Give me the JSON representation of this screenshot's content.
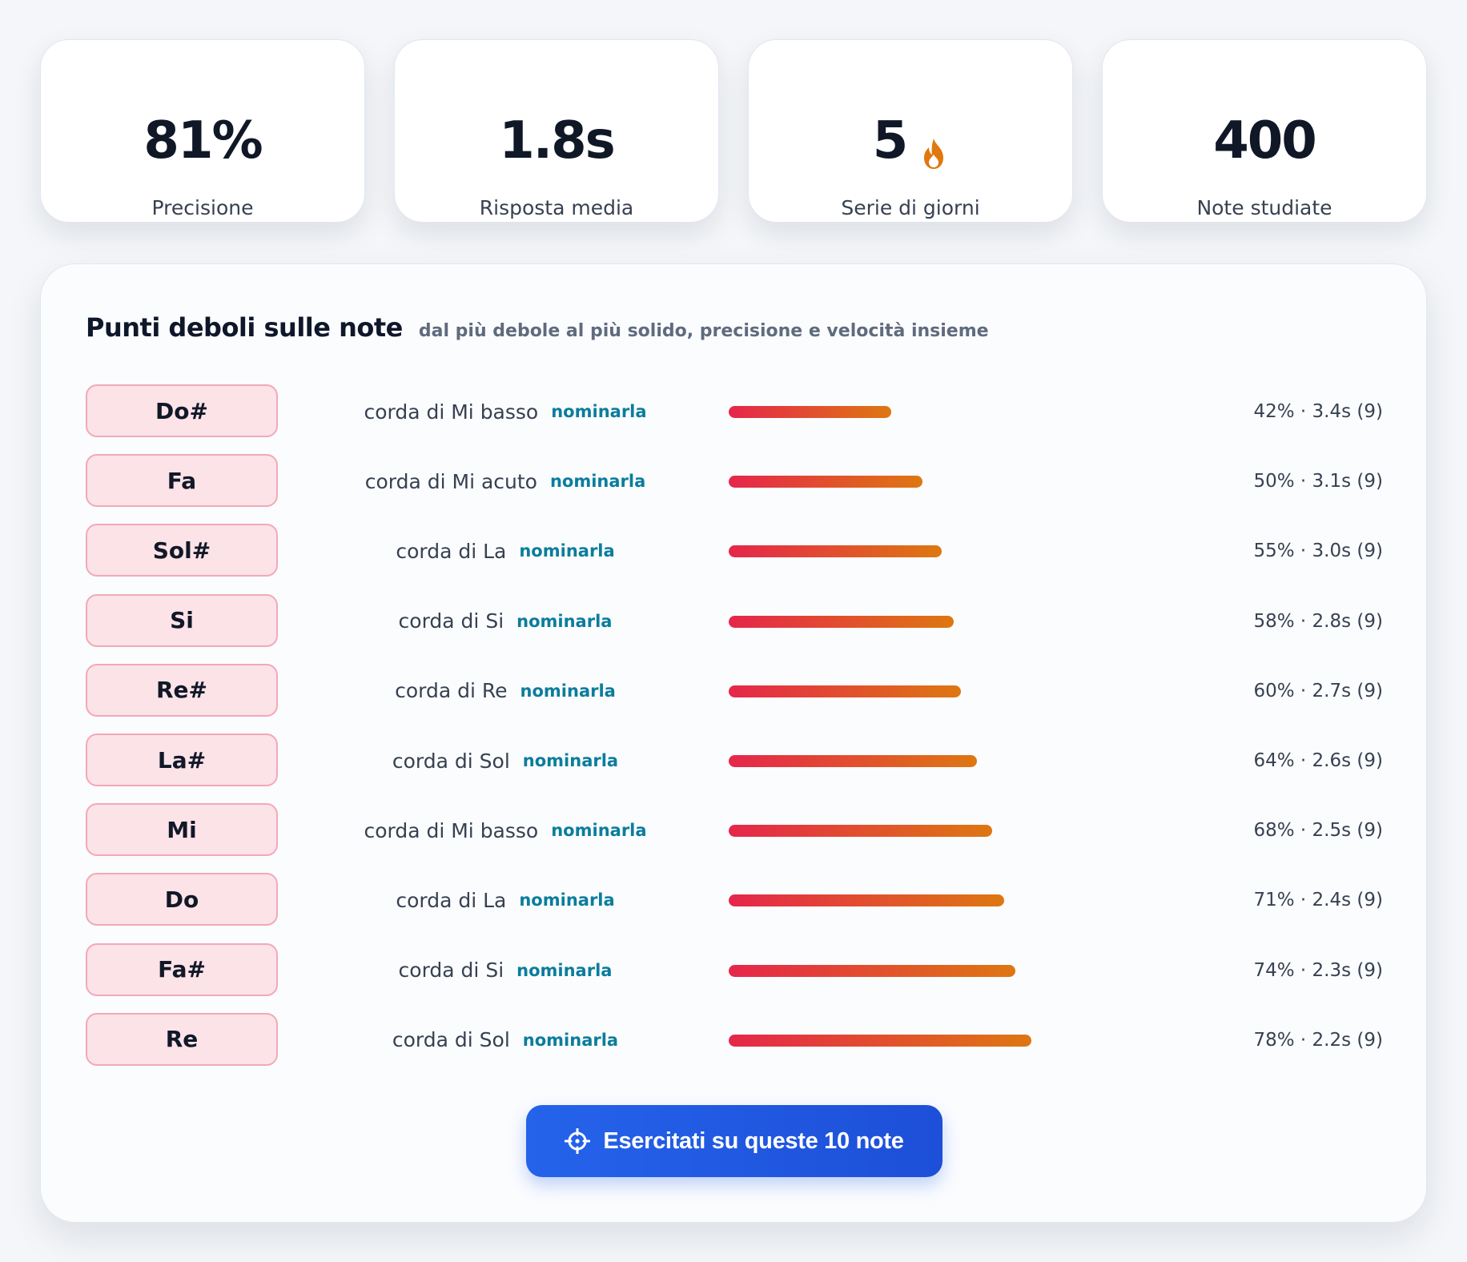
{
  "stats": [
    {
      "value": "81%",
      "label": "Precisione"
    },
    {
      "value": "1.8s",
      "label": "Risposta media"
    },
    {
      "value": "5",
      "label": "Serie di giorni",
      "icon": "flame-icon"
    },
    {
      "value": "400",
      "label": "Note studiate"
    }
  ],
  "weak_notes": {
    "title": "Punti deboli sulle note",
    "subtitle": "dal più debole al più solido, precisione e velocità insieme",
    "link_label": "nominarla",
    "rows": [
      {
        "note": "Do#",
        "string": "corda di Mi basso",
        "accuracy": 42,
        "metric": "42% · 3.4s (9)"
      },
      {
        "note": "Fa",
        "string": "corda di Mi acuto",
        "accuracy": 50,
        "metric": "50% · 3.1s (9)"
      },
      {
        "note": "Sol#",
        "string": "corda di La",
        "accuracy": 55,
        "metric": "55% · 3.0s (9)"
      },
      {
        "note": "Si",
        "string": "corda di Si",
        "accuracy": 58,
        "metric": "58% · 2.8s (9)"
      },
      {
        "note": "Re#",
        "string": "corda di Re",
        "accuracy": 60,
        "metric": "60% · 2.7s (9)"
      },
      {
        "note": "La#",
        "string": "corda di Sol",
        "accuracy": 64,
        "metric": "64% · 2.6s (9)"
      },
      {
        "note": "Mi",
        "string": "corda di Mi basso",
        "accuracy": 68,
        "metric": "68% · 2.5s (9)"
      },
      {
        "note": "Do",
        "string": "corda di La",
        "accuracy": 71,
        "metric": "71% · 2.4s (9)"
      },
      {
        "note": "Fa#",
        "string": "corda di Si",
        "accuracy": 74,
        "metric": "74% · 2.3s (9)"
      },
      {
        "note": "Re",
        "string": "corda di Sol",
        "accuracy": 78,
        "metric": "78% · 2.2s (9)"
      }
    ],
    "button_label": "Esercitati su queste 10 note",
    "button_icon": "crosshair-icon"
  },
  "colors": {
    "bar_start": "#e5264b",
    "bar_end": "#de7712",
    "chip_bg": "#fbe3e8",
    "chip_border": "#f2a9b8",
    "link": "#0b7d9c",
    "button": "#2563eb",
    "flame": "#e0780f"
  }
}
